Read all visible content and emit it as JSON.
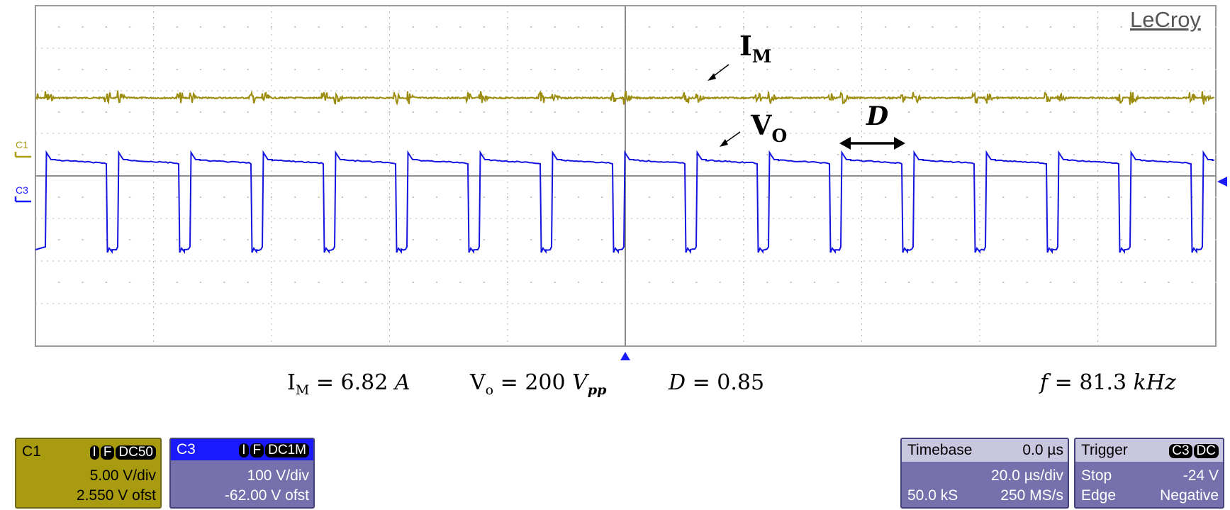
{
  "scope": {
    "brand": "LeCroy",
    "channel_markers": [
      {
        "label": "C1",
        "color": "#a89b10"
      },
      {
        "label": "C3",
        "color": "#1a1aff"
      }
    ],
    "trace_colors": {
      "im": "#9c8d10",
      "vo": "#1515e0"
    }
  },
  "annotations": {
    "im_label": {
      "main": "I",
      "sub": "M"
    },
    "vo_label": {
      "main": "V",
      "sub": "O"
    },
    "d_label": "D"
  },
  "measurements": {
    "im": {
      "name": "I",
      "sub": "M",
      "eq": " = 6.82 ",
      "unit": "A"
    },
    "vo": {
      "name": "V",
      "sub": "o",
      "eq": " = 200 ",
      "unit": "V",
      "unit_sub": "pp"
    },
    "d": {
      "name": "D",
      "eq": " = 0.85"
    },
    "f": {
      "name": "f",
      "eq": " = 81.3 ",
      "unit": "kHz"
    }
  },
  "panels": {
    "c1": {
      "title": "C1",
      "badges": [
        "I",
        "F",
        "DC50"
      ],
      "scale": "5.00 V/div",
      "offset": "2.550 V ofst"
    },
    "c3": {
      "title": "C3",
      "badges": [
        "I",
        "F",
        "DC1M"
      ],
      "scale": "100 V/div",
      "offset": "-62.00 V ofst"
    },
    "timebase": {
      "title": "Timebase",
      "delay": "0.0 µs",
      "scale": "20.0 µs/div",
      "samples": "50.0 kS",
      "rate": "250 MS/s"
    },
    "trigger": {
      "title": "Trigger",
      "badges": [
        "C3",
        "DC"
      ],
      "mode": "Stop",
      "level": "-24 V",
      "type": "Edge",
      "slope": "Negative"
    }
  }
}
